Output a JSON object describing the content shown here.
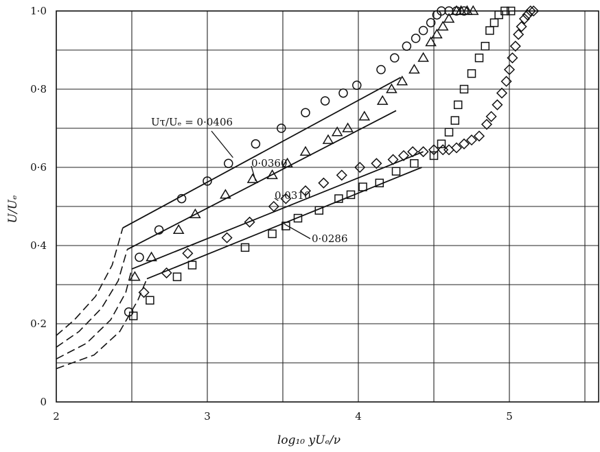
{
  "chart_data": {
    "type": "scatter",
    "title": "",
    "xlabel": "log₁₀ yUₑ/ν",
    "ylabel": "U/Uₑ",
    "xlim": [
      2,
      5.5
    ],
    "ylim": [
      0,
      1.0
    ],
    "x_ticks": [
      "2",
      "3",
      "4",
      "5"
    ],
    "y_ticks": [
      "0",
      "0·2",
      "0·4",
      "0·6",
      "0·8",
      "1·0"
    ],
    "x_tick_values": [
      2,
      3,
      4,
      5
    ],
    "y_tick_values": [
      0,
      0.2,
      0.4,
      0.6,
      0.8,
      1.0
    ],
    "grid": true,
    "series": [
      {
        "name": "Uτ/Uₑ = 0·0406",
        "marker": "circle",
        "x": [
          2.48,
          2.55,
          2.68,
          2.83,
          3.0,
          3.14,
          3.32,
          3.49,
          3.65,
          3.78,
          3.9,
          3.99,
          4.15,
          4.24,
          4.32,
          4.38,
          4.43,
          4.48,
          4.52,
          4.55,
          4.6,
          4.65,
          4.7
        ],
        "y": [
          0.23,
          0.37,
          0.44,
          0.52,
          0.565,
          0.61,
          0.66,
          0.7,
          0.74,
          0.77,
          0.79,
          0.81,
          0.85,
          0.88,
          0.91,
          0.93,
          0.95,
          0.97,
          0.99,
          1.0,
          1.0,
          1.0,
          1.0
        ],
        "fit_line": {
          "x": [
            2.44,
            4.28
          ],
          "y": [
            0.445,
            0.83
          ]
        }
      },
      {
        "name": "0·0360",
        "marker": "triangle",
        "x": [
          2.52,
          2.63,
          2.81,
          2.92,
          3.12,
          3.3,
          3.43,
          3.53,
          3.65,
          3.8,
          3.86,
          3.93,
          4.04,
          4.16,
          4.22,
          4.29,
          4.37,
          4.43,
          4.48,
          4.52,
          4.56,
          4.6,
          4.65,
          4.68,
          4.72,
          4.76
        ],
        "y": [
          0.32,
          0.37,
          0.44,
          0.48,
          0.53,
          0.57,
          0.58,
          0.61,
          0.64,
          0.67,
          0.69,
          0.7,
          0.73,
          0.77,
          0.8,
          0.82,
          0.85,
          0.88,
          0.92,
          0.94,
          0.96,
          0.98,
          1.0,
          1.0,
          1.0,
          1.0
        ],
        "fit_line": {
          "x": [
            2.47,
            4.25
          ],
          "y": [
            0.39,
            0.745
          ]
        }
      },
      {
        "name": "0·0310",
        "marker": "diamond",
        "x": [
          2.58,
          2.73,
          2.87,
          3.13,
          3.28,
          3.44,
          3.52,
          3.65,
          3.77,
          3.89,
          4.01,
          4.12,
          4.23,
          4.3,
          4.36,
          4.43,
          4.5,
          4.56,
          4.6,
          4.65,
          4.7,
          4.75,
          4.8,
          4.85,
          4.88,
          4.92,
          4.95,
          4.98,
          5.0,
          5.02,
          5.04,
          5.06,
          5.08,
          5.1,
          5.12,
          5.14,
          5.16
        ],
        "y": [
          0.28,
          0.33,
          0.38,
          0.42,
          0.46,
          0.5,
          0.52,
          0.54,
          0.56,
          0.58,
          0.6,
          0.61,
          0.62,
          0.63,
          0.64,
          0.64,
          0.645,
          0.645,
          0.645,
          0.65,
          0.66,
          0.67,
          0.68,
          0.71,
          0.73,
          0.76,
          0.79,
          0.82,
          0.85,
          0.88,
          0.91,
          0.94,
          0.96,
          0.98,
          0.99,
          1.0,
          1.0
        ],
        "fit_line": {
          "x": [
            2.5,
            4.43
          ],
          "y": [
            0.34,
            0.64
          ]
        }
      },
      {
        "name": "0·0286",
        "marker": "square",
        "x": [
          2.51,
          2.62,
          2.8,
          2.9,
          3.25,
          3.43,
          3.52,
          3.6,
          3.74,
          3.87,
          3.95,
          4.03,
          4.14,
          4.25,
          4.37,
          4.5,
          4.55,
          4.6,
          4.64,
          4.66,
          4.7,
          4.75,
          4.8,
          4.84,
          4.87,
          4.9,
          4.93,
          4.97,
          5.01
        ],
        "y": [
          0.22,
          0.26,
          0.32,
          0.35,
          0.395,
          0.43,
          0.45,
          0.47,
          0.49,
          0.52,
          0.53,
          0.55,
          0.56,
          0.59,
          0.61,
          0.63,
          0.66,
          0.69,
          0.72,
          0.76,
          0.8,
          0.84,
          0.88,
          0.91,
          0.95,
          0.97,
          0.99,
          1.0,
          1.0
        ],
        "fit_line": {
          "x": [
            2.6,
            4.42
          ],
          "y": [
            0.315,
            0.6
          ]
        }
      }
    ],
    "dashed_curves": [
      {
        "x": [
          2.0,
          2.12,
          2.26,
          2.37,
          2.44
        ],
        "y": [
          0.17,
          0.21,
          0.27,
          0.35,
          0.445
        ]
      },
      {
        "x": [
          2.0,
          2.15,
          2.3,
          2.41,
          2.47
        ],
        "y": [
          0.14,
          0.18,
          0.24,
          0.31,
          0.39
        ]
      },
      {
        "x": [
          2.0,
          2.2,
          2.36,
          2.46,
          2.5
        ],
        "y": [
          0.11,
          0.15,
          0.21,
          0.28,
          0.34
        ]
      },
      {
        "x": [
          2.0,
          2.25,
          2.42,
          2.54,
          2.6
        ],
        "y": [
          0.085,
          0.12,
          0.18,
          0.26,
          0.315
        ]
      }
    ],
    "annotations": [
      {
        "text": "Uτ/Uₑ = 0·0406",
        "series": 0,
        "point": [
          3.17,
          0.625
        ]
      },
      {
        "text": "0·0360",
        "series": 1,
        "point": [
          3.32,
          0.565
        ]
      },
      {
        "text": "0·0310",
        "series": 2,
        "point": [
          3.47,
          0.515
        ]
      },
      {
        "text": "0·0286",
        "series": 3,
        "point": [
          3.51,
          0.455
        ]
      }
    ]
  }
}
